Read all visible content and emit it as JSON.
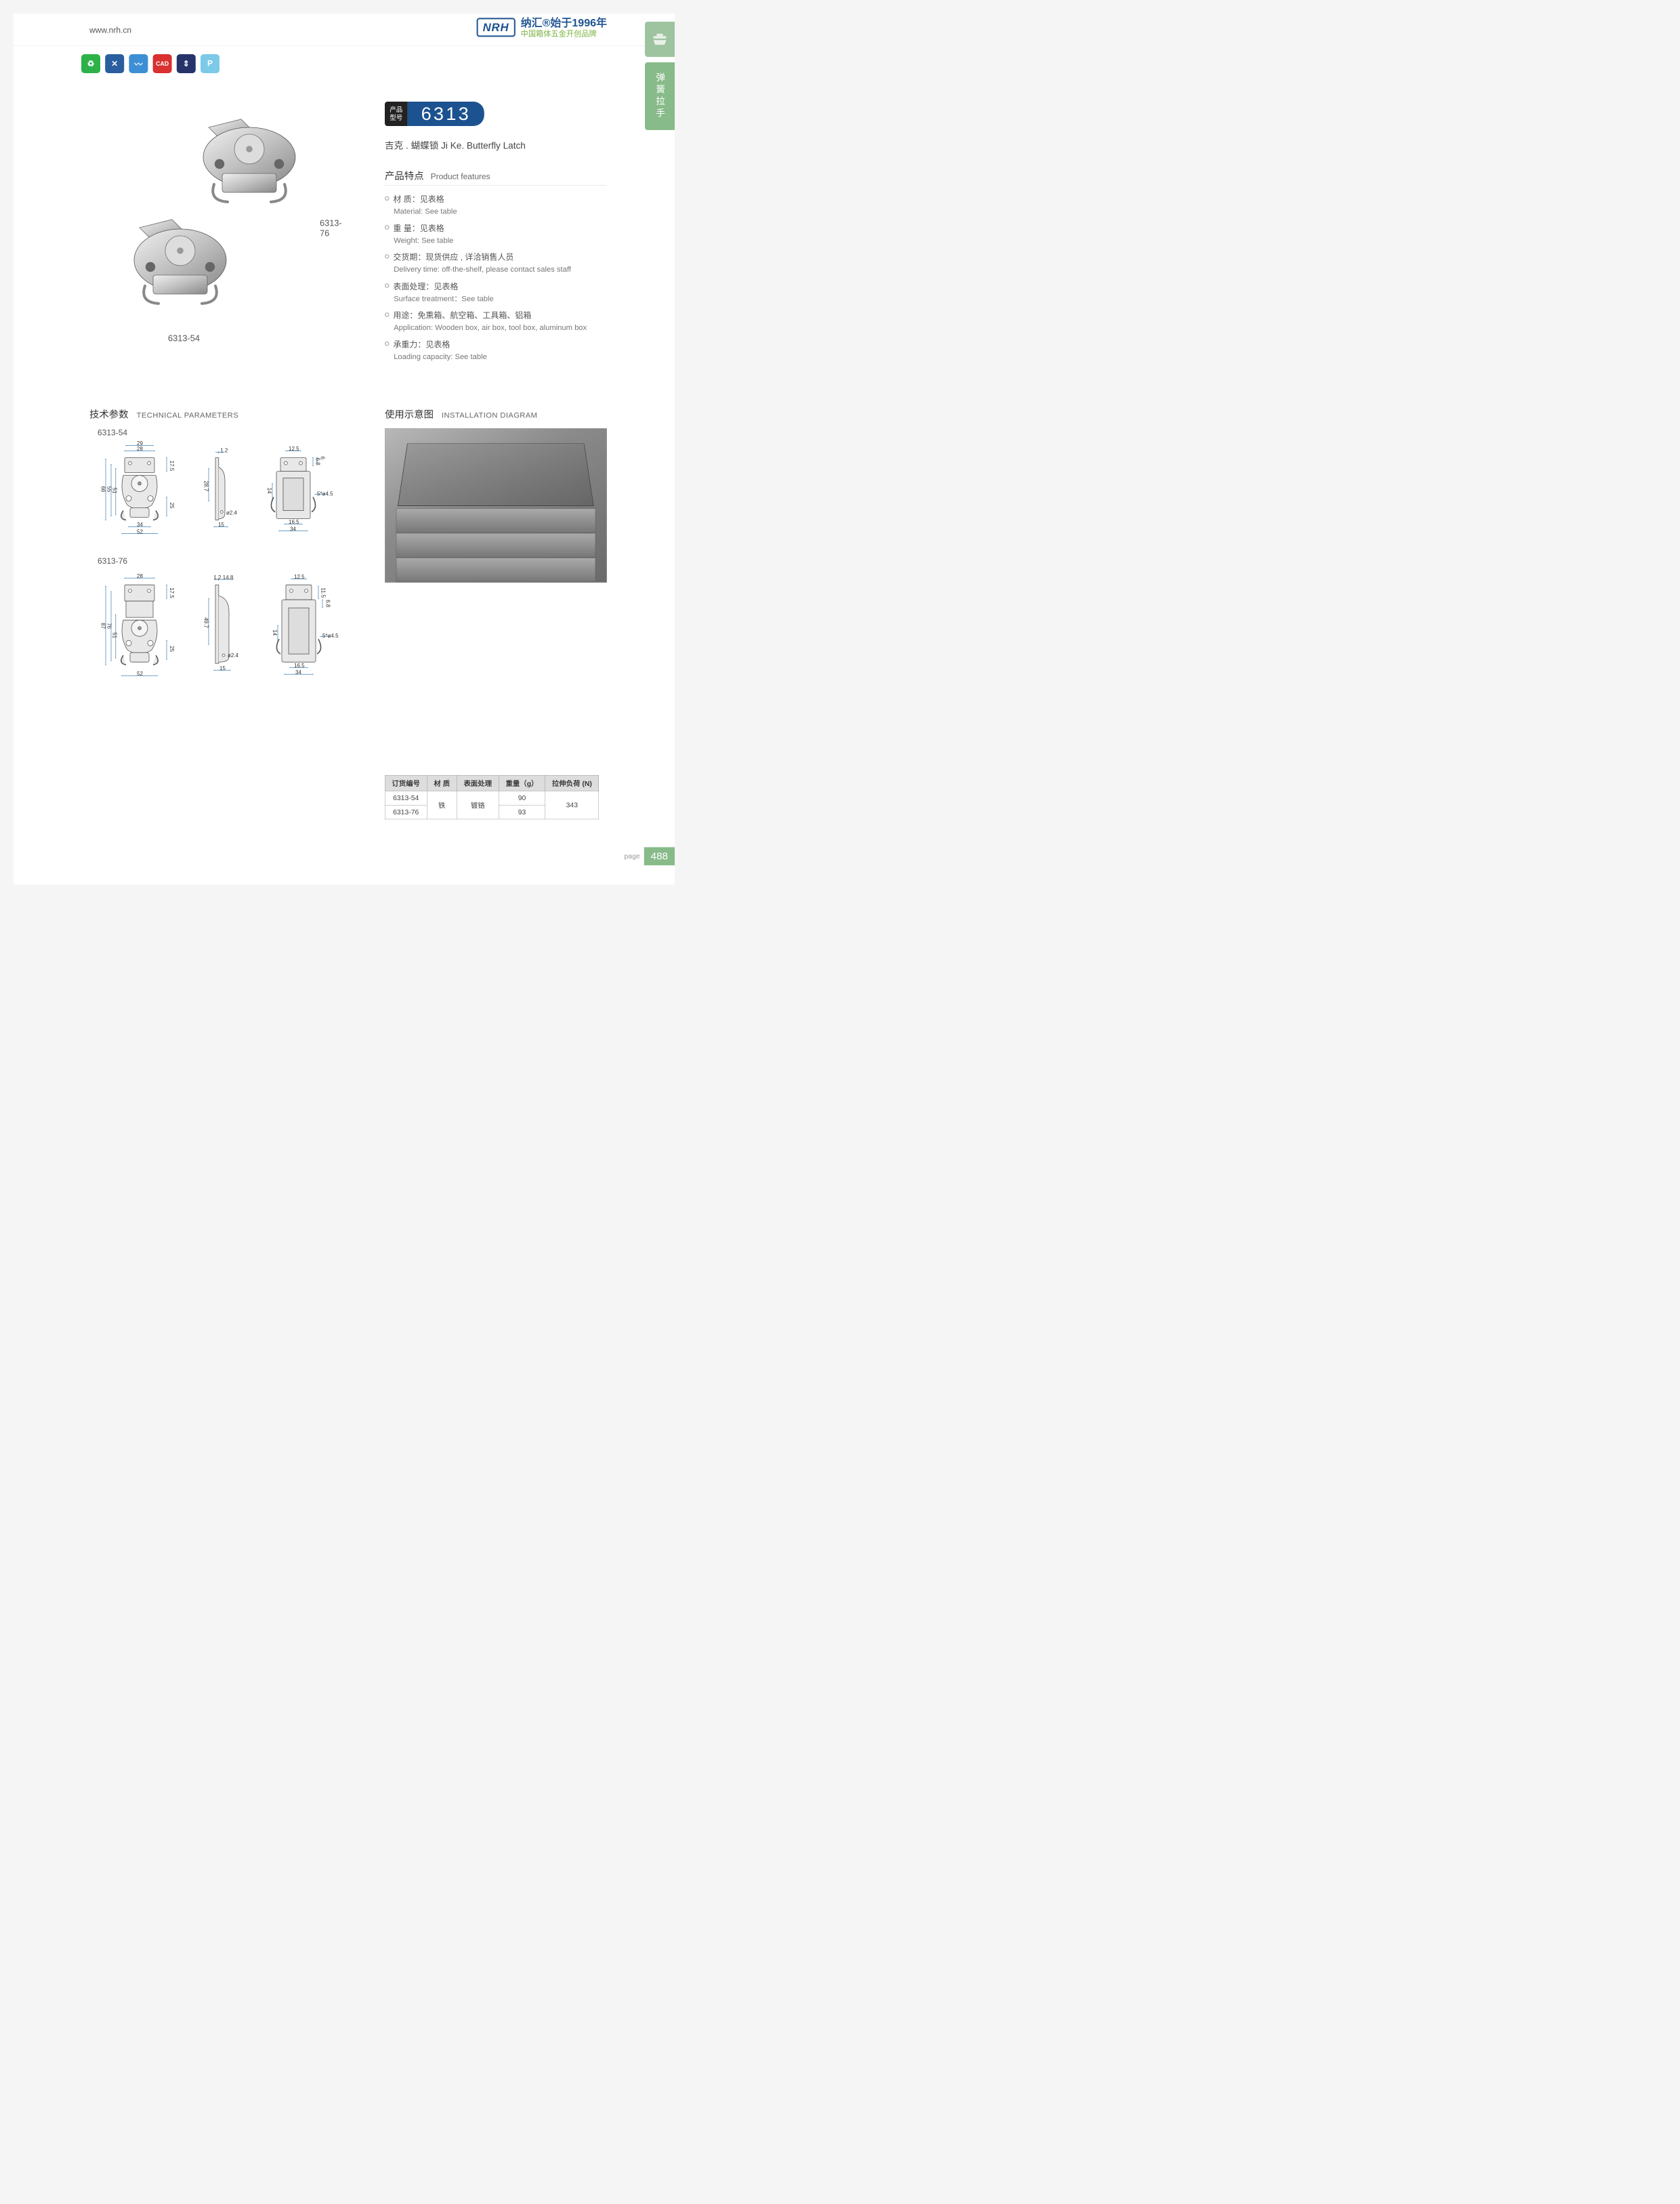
{
  "header": {
    "url": "www.nrh.cn",
    "logo": "NRH",
    "logo_main": "纳汇®始于1996年",
    "logo_sub": "中国箱体五金开创品牌"
  },
  "side_tab_label": "弹簧拉手",
  "icon_row": [
    {
      "bg": "#2db24a",
      "glyph": "♻"
    },
    {
      "bg": "#2a5e9e",
      "glyph": "✕"
    },
    {
      "bg": "#3c8fd4",
      "glyph": "〰"
    },
    {
      "bg": "#d93030",
      "glyph": "CAD"
    },
    {
      "bg": "#26336b",
      "glyph": "⇕"
    },
    {
      "bg": "#7cc9e8",
      "glyph": "P"
    }
  ],
  "product_labels": {
    "top": "6313-76",
    "bot": "6313-54"
  },
  "badge": {
    "label_l1": "产品",
    "label_l2": "型号",
    "number": "6313"
  },
  "subtitle": "吉克 . 蝴蝶锁   Ji Ke. Butterfly Latch",
  "features_heading_cn": "产品特点",
  "features_heading_en": "Product features",
  "features": [
    {
      "cn": "材  质：见表格",
      "en": "Material: See table"
    },
    {
      "cn": "重  量：见表格",
      "en": "Weight: See table"
    },
    {
      "cn": "交货期：现货供应 , 详洽销售人员",
      "en": "Delivery time: off-the-shelf, please contact sales staff"
    },
    {
      "cn": "表面处理：见表格",
      "en": "Surface treatment：See table"
    },
    {
      "cn": "用途：免熏箱、航空箱、工具箱、铝箱",
      "en": "Application: Wooden box, air box, tool box, aluminum box"
    },
    {
      "cn": "承重力：见表格",
      "en": "Loading capacity: See table"
    }
  ],
  "tech_heading_cn": "技术参数",
  "tech_heading_en": "TECHNICAL PARAMETERS",
  "install_heading_cn": "使用示意图",
  "install_heading_en": "INSTALLATION DIAGRAM",
  "diagrams": {
    "model1": "6313-54",
    "model2": "6313-76",
    "d54": {
      "front": {
        "w_top": "29",
        "w_top2": "28",
        "h_total": "66",
        "h_in": "55",
        "h_in2": "51",
        "h_top": "17.5",
        "h_bot": "25",
        "w_bot": "34",
        "w_total": "52"
      },
      "side": {
        "t": "1.2",
        "h": "28.7",
        "d": "ø2.4",
        "w": "15"
      },
      "back": {
        "w_top": "12.5",
        "h1": "6.8",
        "h2": "6",
        "h_mid": "14",
        "hole": "5*ø4.5",
        "w_bot": "16.5",
        "w_total": "34"
      }
    },
    "d76": {
      "front": {
        "w_top": "28",
        "h_total": "87",
        "h_in": "76",
        "h_in2": "51",
        "h_top": "17.5",
        "h_bot": "25",
        "w_total": "52"
      },
      "side": {
        "t": "1.2",
        "t2": "14.8",
        "h": "49.7",
        "d": "ø2.4",
        "w": "15"
      },
      "back": {
        "w_top": "12.5",
        "h1": "11.5",
        "h2": "6.8",
        "h_mid": "14",
        "hole": "5*ø4.5",
        "w_bot": "16.5",
        "w_total": "34"
      }
    }
  },
  "table": {
    "headers": [
      "订货编号",
      "材    质",
      "表面处理",
      "重量（g）",
      "拉伸负荷 (N)"
    ],
    "rows": [
      [
        "6313-54",
        "",
        "",
        "90",
        ""
      ],
      [
        "6313-76",
        "",
        "",
        "93",
        ""
      ]
    ],
    "material": "铁",
    "surface": "镀铬",
    "load": "343"
  },
  "page_label": "page",
  "page_number": "488"
}
